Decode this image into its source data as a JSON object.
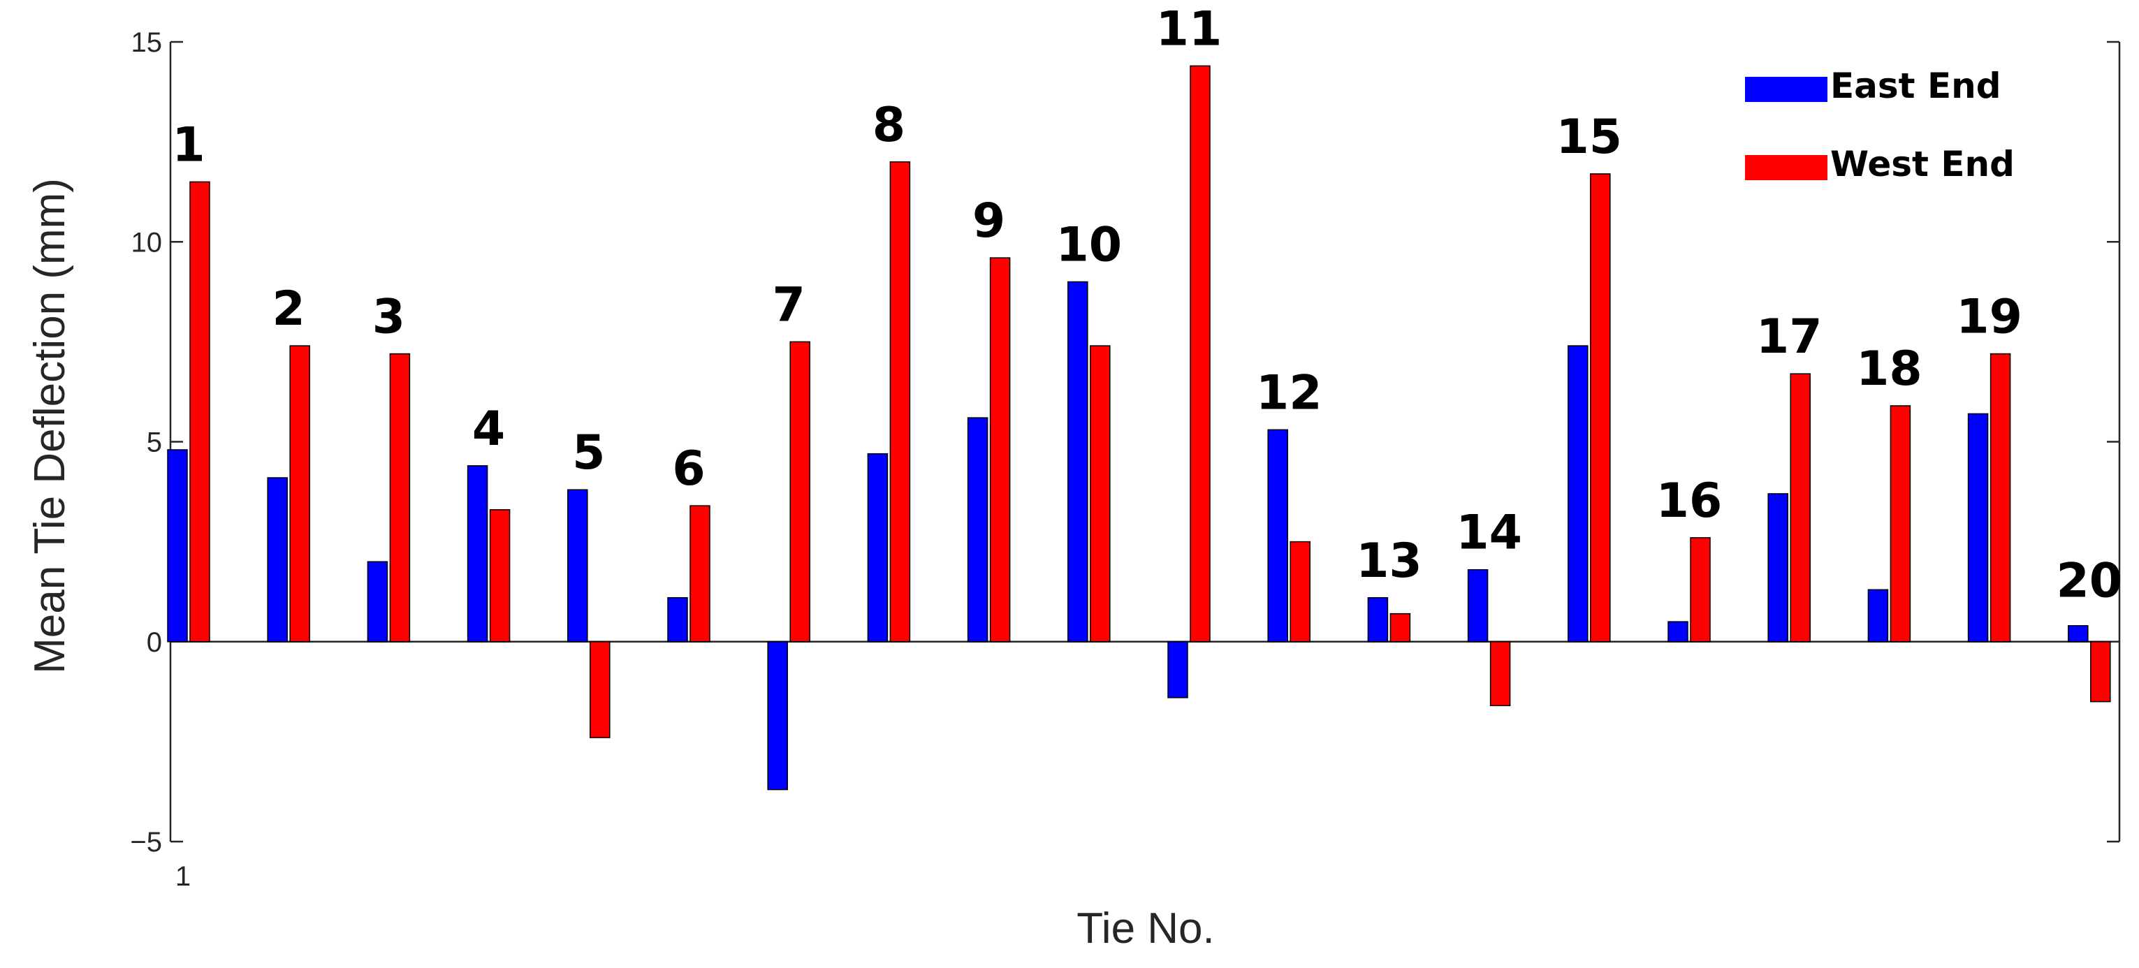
{
  "chart_data": {
    "type": "bar",
    "title": "",
    "xlabel": "Tie No.",
    "ylabel": "Mean Tie Deflection (mm)",
    "ylim": [
      -5,
      15
    ],
    "yticks": [
      -5,
      0,
      5,
      10,
      15
    ],
    "ytick_labels": [
      "−5",
      "0",
      "5",
      "10",
      "15"
    ],
    "xtick_labels": [
      "1"
    ],
    "grid": false,
    "legend_position": "top-right",
    "categories": [
      "1",
      "2",
      "3",
      "4",
      "5",
      "6",
      "7",
      "8",
      "9",
      "10",
      "11",
      "12",
      "13",
      "14",
      "15",
      "16",
      "17",
      "18",
      "19",
      "20"
    ],
    "series": [
      {
        "name": "East End",
        "color": "#0000ff",
        "values": [
          4.8,
          4.1,
          2.0,
          4.4,
          3.8,
          1.1,
          -3.7,
          4.7,
          5.6,
          9.0,
          -1.4,
          5.3,
          1.1,
          1.8,
          7.4,
          0.5,
          3.7,
          1.3,
          5.7,
          0.4
        ]
      },
      {
        "name": "West End",
        "color": "#ff0000",
        "values": [
          11.5,
          7.4,
          7.2,
          3.3,
          -2.4,
          3.4,
          7.5,
          12.0,
          9.6,
          7.4,
          14.4,
          2.5,
          0.7,
          -1.6,
          11.7,
          2.6,
          6.7,
          5.9,
          7.2,
          -1.5
        ]
      }
    ]
  }
}
